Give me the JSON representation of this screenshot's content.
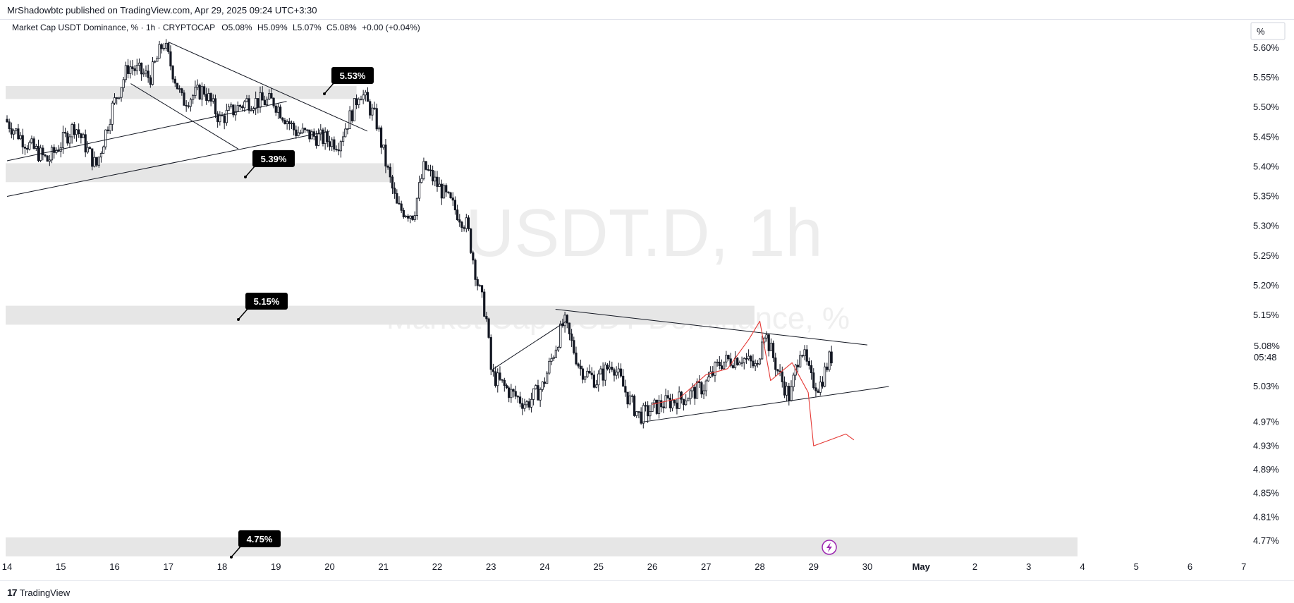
{
  "header": {
    "publisher_line": "MrShadowbtc published on TradingView.com, Apr 29, 2025 09:24 UTC+3:30"
  },
  "footer": {
    "brand": "TradingView",
    "logo": "17"
  },
  "legend": {
    "name": "Market Cap USDT Dominance, % · 1h · CRYPTOCAP",
    "o": "O5.08%",
    "h": "H5.09%",
    "l": "L5.07%",
    "c": "C5.08%",
    "change": "+0.00 (+0.04%)"
  },
  "watermark": {
    "symbol": "USDT.D, 1h",
    "description": "Market Cap USDT Dominance, %"
  },
  "axis": {
    "unit_label": "%",
    "y_ticks": [
      "5.60%",
      "5.55%",
      "5.50%",
      "5.45%",
      "5.40%",
      "5.35%",
      "5.30%",
      "5.25%",
      "5.20%",
      "5.15%",
      "5.03%",
      "4.97%",
      "4.93%",
      "4.89%",
      "4.85%",
      "4.81%",
      "4.77%"
    ],
    "x_ticks": [
      "14",
      "15",
      "16",
      "17",
      "18",
      "19",
      "20",
      "21",
      "22",
      "23",
      "24",
      "25",
      "26",
      "27",
      "28",
      "29",
      "30",
      "May",
      "2",
      "3",
      "4",
      "5",
      "6",
      "7"
    ],
    "current_price": "5.08%",
    "countdown": "05:48"
  },
  "colors": {
    "candle": "#131722",
    "zone": "#e6e6e6",
    "annotation": "#e53935",
    "badge": "#000000",
    "event": "#9c27b0"
  },
  "chart_data": {
    "type": "candlestick",
    "timeframe": "1h",
    "x_axis": [
      "14",
      "15",
      "16",
      "17",
      "18",
      "19",
      "20",
      "21",
      "22",
      "23",
      "24",
      "25",
      "26",
      "27",
      "28",
      "29",
      "30",
      "May",
      "2",
      "3",
      "4",
      "5",
      "6",
      "7"
    ],
    "y_range": [
      4.75,
      5.62
    ],
    "current": {
      "open": 5.08,
      "high": 5.09,
      "low": 5.07,
      "close": 5.08,
      "change": 0.0,
      "change_pct": 0.04
    },
    "price_path": [
      {
        "day": 14.0,
        "value": 5.48
      },
      {
        "day": 14.4,
        "value": 5.44
      },
      {
        "day": 14.8,
        "value": 5.41
      },
      {
        "day": 15.3,
        "value": 5.47
      },
      {
        "day": 15.7,
        "value": 5.4
      },
      {
        "day": 16.0,
        "value": 5.5
      },
      {
        "day": 16.3,
        "value": 5.57
      },
      {
        "day": 16.7,
        "value": 5.55
      },
      {
        "day": 16.95,
        "value": 5.61
      },
      {
        "day": 17.3,
        "value": 5.51
      },
      {
        "day": 17.7,
        "value": 5.53
      },
      {
        "day": 18.0,
        "value": 5.48
      },
      {
        "day": 18.5,
        "value": 5.51
      },
      {
        "day": 19.0,
        "value": 5.51
      },
      {
        "day": 19.4,
        "value": 5.46
      },
      {
        "day": 19.8,
        "value": 5.45
      },
      {
        "day": 20.2,
        "value": 5.44
      },
      {
        "day": 20.5,
        "value": 5.5
      },
      {
        "day": 20.6,
        "value": 5.53
      },
      {
        "day": 20.9,
        "value": 5.48
      },
      {
        "day": 21.1,
        "value": 5.4
      },
      {
        "day": 21.3,
        "value": 5.33
      },
      {
        "day": 21.6,
        "value": 5.32
      },
      {
        "day": 21.8,
        "value": 5.4
      },
      {
        "day": 22.2,
        "value": 5.35
      },
      {
        "day": 22.6,
        "value": 5.3
      },
      {
        "day": 22.8,
        "value": 5.2
      },
      {
        "day": 22.95,
        "value": 5.15
      },
      {
        "day": 23.05,
        "value": 5.05
      },
      {
        "day": 23.4,
        "value": 5.02
      },
      {
        "day": 23.7,
        "value": 5.0
      },
      {
        "day": 24.0,
        "value": 5.03
      },
      {
        "day": 24.4,
        "value": 5.14
      },
      {
        "day": 24.7,
        "value": 5.06
      },
      {
        "day": 25.0,
        "value": 5.04
      },
      {
        "day": 25.3,
        "value": 5.07
      },
      {
        "day": 25.6,
        "value": 5.01
      },
      {
        "day": 25.8,
        "value": 4.98
      },
      {
        "day": 26.2,
        "value": 5.0
      },
      {
        "day": 26.6,
        "value": 5.01
      },
      {
        "day": 27.0,
        "value": 5.03
      },
      {
        "day": 27.3,
        "value": 5.07
      },
      {
        "day": 27.7,
        "value": 5.08
      },
      {
        "day": 28.0,
        "value": 5.06
      },
      {
        "day": 28.1,
        "value": 5.13
      },
      {
        "day": 28.4,
        "value": 5.05
      },
      {
        "day": 28.6,
        "value": 5.01
      },
      {
        "day": 28.8,
        "value": 5.1
      },
      {
        "day": 29.0,
        "value": 5.04
      },
      {
        "day": 29.15,
        "value": 5.03
      },
      {
        "day": 29.35,
        "value": 5.08
      }
    ],
    "price_labels": [
      {
        "label": "5.53%",
        "value": 5.53
      },
      {
        "label": "5.39%",
        "value": 5.39
      },
      {
        "label": "5.15%",
        "value": 5.15
      },
      {
        "label": "4.75%",
        "value": 4.75
      }
    ],
    "zones": [
      {
        "from_day": 14.0,
        "to_day": 20.5,
        "low": 5.52,
        "high": 5.53
      },
      {
        "from_day": 14.0,
        "to_day": 21.2,
        "low": 5.38,
        "high": 5.4
      },
      {
        "from_day": 14.0,
        "to_day": 27.9,
        "low": 5.14,
        "high": 5.16
      },
      {
        "from_day": 14.0,
        "to_day": 4.0,
        "low": 4.75,
        "high": 4.77
      }
    ],
    "trend_lines": [
      {
        "x1": 17.0,
        "y1": 5.61,
        "x2": 20.7,
        "y2": 5.46
      },
      {
        "x1": 16.3,
        "y1": 5.54,
        "x2": 18.3,
        "y2": 5.43
      },
      {
        "x1": 14.0,
        "y1": 5.41,
        "x2": 19.2,
        "y2": 5.51
      },
      {
        "x1": 14.0,
        "y1": 5.35,
        "x2": 20.0,
        "y2": 5.46
      },
      {
        "x1": 23.05,
        "y1": 5.06,
        "x2": 24.4,
        "y2": 5.14
      },
      {
        "x1": 24.2,
        "y1": 5.16,
        "x2": 30.0,
        "y2": 5.1
      },
      {
        "x1": 25.8,
        "y1": 4.97,
        "x2": 30.4,
        "y2": 5.03
      }
    ],
    "projection_path": [
      {
        "day": 26.0,
        "value": 5.0
      },
      {
        "day": 26.5,
        "value": 5.01
      },
      {
        "day": 27.0,
        "value": 5.05
      },
      {
        "day": 27.4,
        "value": 5.06
      },
      {
        "day": 27.8,
        "value": 5.11
      },
      {
        "day": 28.0,
        "value": 5.14
      },
      {
        "day": 28.2,
        "value": 5.04
      },
      {
        "day": 28.6,
        "value": 5.07
      },
      {
        "day": 28.9,
        "value": 5.02
      },
      {
        "day": 29.0,
        "value": 4.93
      },
      {
        "day": 29.3,
        "value": 4.94
      },
      {
        "day": 29.6,
        "value": 4.95
      },
      {
        "day": 29.75,
        "value": 4.94
      }
    ]
  }
}
